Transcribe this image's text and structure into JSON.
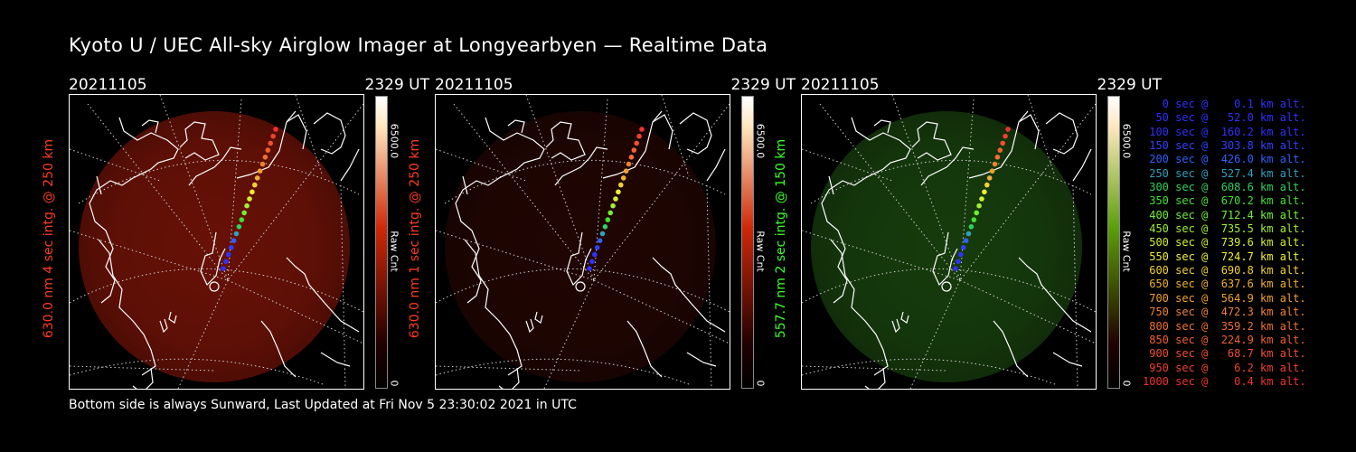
{
  "header": {
    "title": "Kyoto U / UEC All-sky Airglow Imager at Longyearbyen — Realtime Data"
  },
  "panels": [
    {
      "date": "20211105",
      "time": "2329 UT",
      "ylabel": "630.0 nm 4 sec intg. @ 250 km",
      "ylabel_color": "#ff3b1e",
      "colorbar_max": "6500.0",
      "colorbar_min": "0",
      "colorbar_unit": "Raw Cnt",
      "colorbar_color": "#d02808",
      "glow_color": "#7a1408",
      "glow_level": 0.85
    },
    {
      "date": "20211105",
      "time": "2329 UT",
      "ylabel": "630.0 nm 1 sec intg. @ 250 km",
      "ylabel_color": "#ff3b1e",
      "colorbar_max": "6500.0",
      "colorbar_min": "0",
      "colorbar_unit": "Raw Cnt",
      "colorbar_color": "#d02808",
      "glow_color": "#3a0a05",
      "glow_level": 0.55
    },
    {
      "date": "20211105",
      "time": "2329 UT",
      "ylabel": "557.7 nm 2 sec intg. @ 150 km",
      "ylabel_color": "#3aff2a",
      "colorbar_max": "6500.0",
      "colorbar_min": "0",
      "colorbar_unit": "Raw Cnt",
      "colorbar_color": "#5aa00a",
      "glow_color": "#1c4a10",
      "glow_level": 0.8
    }
  ],
  "legend": [
    {
      "text": "   0 sec @    0.1 km alt.",
      "color": "#3030ff"
    },
    {
      "text": "  50 sec @   52.0 km alt.",
      "color": "#3030ff"
    },
    {
      "text": " 100 sec @  160.2 km alt.",
      "color": "#3030ff"
    },
    {
      "text": " 150 sec @  303.8 km alt.",
      "color": "#3040ff"
    },
    {
      "text": " 200 sec @  426.0 km alt.",
      "color": "#3060ff"
    },
    {
      "text": " 250 sec @  527.4 km alt.",
      "color": "#30a0c0"
    },
    {
      "text": " 300 sec @  608.6 km alt.",
      "color": "#30d060"
    },
    {
      "text": " 350 sec @  670.2 km alt.",
      "color": "#40e030"
    },
    {
      "text": " 400 sec @  712.4 km alt.",
      "color": "#70f030"
    },
    {
      "text": " 450 sec @  735.5 km alt.",
      "color": "#a0f030"
    },
    {
      "text": " 500 sec @  739.6 km alt.",
      "color": "#d0f030"
    },
    {
      "text": " 550 sec @  724.7 km alt.",
      "color": "#f0f030"
    },
    {
      "text": " 600 sec @  690.8 km alt.",
      "color": "#f0d030"
    },
    {
      "text": " 650 sec @  637.6 km alt.",
      "color": "#f0b030"
    },
    {
      "text": " 700 sec @  564.9 km alt.",
      "color": "#f0a030"
    },
    {
      "text": " 750 sec @  472.3 km alt.",
      "color": "#f08030"
    },
    {
      "text": " 800 sec @  359.2 km alt.",
      "color": "#f07030"
    },
    {
      "text": " 850 sec @  224.9 km alt.",
      "color": "#f06030"
    },
    {
      "text": " 900 sec @   68.7 km alt.",
      "color": "#f05030"
    },
    {
      "text": " 950 sec @    6.2 km alt.",
      "color": "#f04030"
    },
    {
      "text": "1000 sec @    0.4 km alt.",
      "color": "#f03030"
    }
  ],
  "footer": {
    "text": "Bottom side is always Sunward, Last Updated at Fri Nov  5 23:30:02 2021 in UTC"
  }
}
